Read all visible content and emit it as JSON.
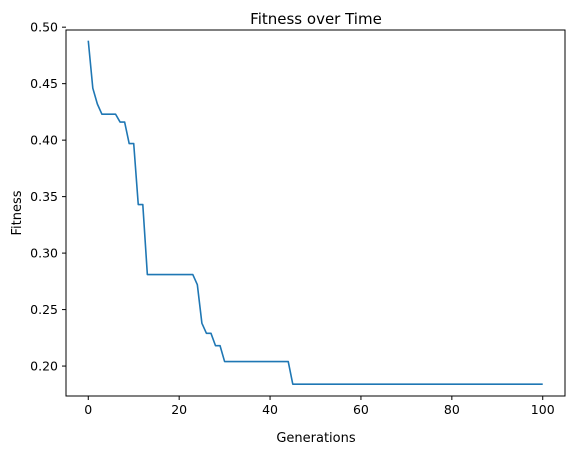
{
  "chart_data": {
    "type": "line",
    "title": "Fitness over Time",
    "xlabel": "Generations",
    "ylabel": "Fitness",
    "xlim": [
      -4.9,
      104.9
    ],
    "ylim": [
      0.1735,
      0.4975
    ],
    "xticks": [
      0,
      20,
      40,
      60,
      80,
      100
    ],
    "yticks": [
      0.2,
      0.25,
      0.3,
      0.35,
      0.4,
      0.45,
      0.5
    ],
    "xtick_labels": [
      "0",
      "20",
      "40",
      "60",
      "80",
      "100"
    ],
    "ytick_labels": [
      "0.20",
      "0.25",
      "0.30",
      "0.35",
      "0.40",
      "0.45",
      "0.50"
    ],
    "grid": false,
    "colors": {
      "line": "#1f77b4"
    },
    "series": [
      {
        "x": [
          0,
          1,
          2,
          3,
          4,
          5,
          6,
          7,
          8,
          9,
          10,
          11,
          12,
          13,
          14,
          15,
          16,
          17,
          18,
          19,
          20,
          21,
          22,
          23,
          24,
          25,
          26,
          27,
          28,
          29,
          30,
          31,
          32,
          33,
          34,
          35,
          36,
          37,
          38,
          39,
          40,
          41,
          42,
          43,
          44,
          45,
          100
        ],
        "y": [
          0.488,
          0.446,
          0.432,
          0.423,
          0.423,
          0.423,
          0.423,
          0.416,
          0.416,
          0.397,
          0.397,
          0.343,
          0.343,
          0.281,
          0.281,
          0.281,
          0.281,
          0.281,
          0.281,
          0.281,
          0.281,
          0.281,
          0.281,
          0.281,
          0.272,
          0.238,
          0.229,
          0.229,
          0.218,
          0.218,
          0.204,
          0.204,
          0.204,
          0.204,
          0.204,
          0.204,
          0.204,
          0.204,
          0.204,
          0.204,
          0.204,
          0.204,
          0.204,
          0.204,
          0.204,
          0.184,
          0.184
        ]
      }
    ]
  }
}
